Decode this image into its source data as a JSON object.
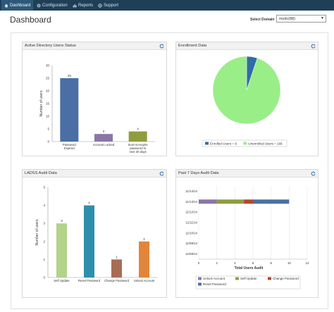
{
  "nav": {
    "items": [
      {
        "label": "Dashboard",
        "icon": "home-icon",
        "active": true
      },
      {
        "label": "Configuration",
        "icon": "gear-icon",
        "active": false
      },
      {
        "label": "Reports",
        "icon": "chart-icon",
        "active": false
      },
      {
        "label": "Support",
        "icon": "lifebuoy-icon",
        "active": false
      }
    ]
  },
  "header": {
    "title": "Dashboard",
    "select_label": "Select Domain",
    "select_value": "mydc(88)"
  },
  "colors": {
    "nav_bg": "#1f3f57",
    "blue": "#4a6fa5",
    "purple": "#8b75a8",
    "olive": "#8f9d3f",
    "light_green": "#b3d28a",
    "teal": "#2e8fac",
    "brown": "#a86c55",
    "orange": "#e2853a",
    "pie_blue": "#2f6da3",
    "pie_green": "#99ee88",
    "dark_red": "#b5462e"
  },
  "panels": {
    "ad": {
      "title": "Active Directory Users Status"
    },
    "enroll": {
      "title": "Enrollment Data"
    },
    "ladss": {
      "title": "LADSS Audit Data"
    },
    "audit7": {
      "title": "Past 7 Days Audit Data"
    }
  },
  "chart_data": [
    {
      "id": "ad",
      "type": "bar",
      "title": "",
      "ylabel": "Number of users",
      "xlabel": "",
      "ylim": [
        0,
        30
      ],
      "yticks": [
        0,
        5,
        10,
        15,
        20,
        25,
        30
      ],
      "categories": [
        "Password Expired",
        "Account Locked",
        "Soon-to-expire password in next 30 days"
      ],
      "values": [
        25,
        3,
        4
      ],
      "colors": [
        "#4a6fa5",
        "#8b75a8",
        "#8f9d3f"
      ]
    },
    {
      "id": "enroll",
      "type": "pie",
      "title": "",
      "labels": [
        "Enrolled Users = 9",
        "Unenrolled Users = 166"
      ],
      "values": [
        9,
        166
      ],
      "colors": [
        "#2f6da3",
        "#99ee88"
      ]
    },
    {
      "id": "ladss",
      "type": "bar",
      "title": "",
      "ylabel": "Number of users",
      "xlabel": "",
      "ylim": [
        0,
        5
      ],
      "yticks": [
        0,
        1,
        2,
        3,
        4,
        5
      ],
      "categories": [
        "Self Update",
        "Reset Password",
        "Change Password",
        "Unlock Account"
      ],
      "values": [
        3,
        4,
        1,
        2
      ],
      "colors": [
        "#b3d28a",
        "#2e8fac",
        "#a86c55",
        "#e2853a"
      ]
    },
    {
      "id": "audit7",
      "type": "bar",
      "orientation": "horizontal-stacked",
      "title": "",
      "xlabel": "Total Users Audit",
      "ylabel": "",
      "xlim": [
        0,
        12
      ],
      "xticks": [
        0,
        2,
        4,
        6,
        8,
        10,
        12
      ],
      "categories": [
        "11/14/14",
        "11/13/14",
        "11/12/14",
        "11/11/14",
        "11/10/14",
        "11/09/14",
        "11/08/14"
      ],
      "series": [
        {
          "name": "Unlock Account",
          "values": [
            0,
            2,
            0,
            0,
            0,
            0,
            0
          ],
          "color": "#8b75a8"
        },
        {
          "name": "Self Update",
          "values": [
            0,
            3,
            0,
            0,
            0,
            0,
            0
          ],
          "color": "#8f9d3f"
        },
        {
          "name": "Change Password",
          "values": [
            0,
            1,
            0,
            0,
            0,
            0,
            0
          ],
          "color": "#b5462e"
        },
        {
          "name": "Reset Password",
          "values": [
            0,
            4,
            0,
            0,
            0,
            0,
            0
          ],
          "color": "#4a6fa5"
        }
      ]
    }
  ]
}
